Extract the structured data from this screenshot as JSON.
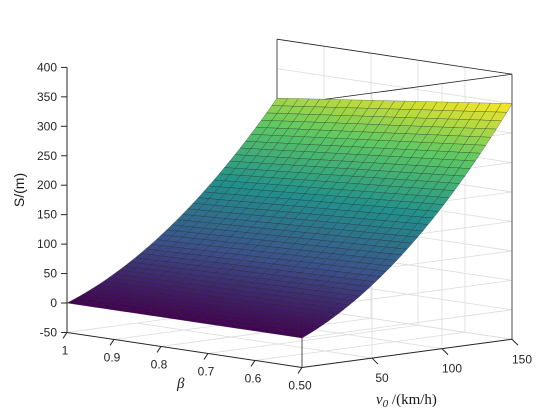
{
  "chart_data": {
    "type": "surface",
    "title": "",
    "zlabel": "S/(m)",
    "xlabel_var": "v",
    "xlabel_sub": "0",
    "xlabel_unit": " /(km/h)",
    "ylabel": "β",
    "x_ticks": [
      "50",
      "100",
      "150"
    ],
    "y_ticks": [
      "1",
      "0.9",
      "0.8",
      "0.7",
      "0.6",
      "0.50"
    ],
    "z_ticks": [
      "400",
      "350",
      "300",
      "250",
      "200",
      "150",
      "100",
      "50",
      "0",
      "-50"
    ],
    "xlim": [
      0,
      150
    ],
    "ylim": [
      0.5,
      1
    ],
    "zlim": [
      -50,
      400
    ],
    "x": [
      0,
      150
    ],
    "y": [
      0.5,
      1
    ],
    "corners": [
      {
        "v0": 0,
        "beta": 1.0,
        "S": 0
      },
      {
        "v0": 0,
        "beta": 0.5,
        "S": 0
      },
      {
        "v0": 150,
        "beta": 1.0,
        "S": 300
      },
      {
        "v0": 150,
        "beta": 0.5,
        "S": 350
      }
    ],
    "colormap": [
      "#440154",
      "#3b528b",
      "#21918c",
      "#5ec962",
      "#fde725"
    ]
  }
}
